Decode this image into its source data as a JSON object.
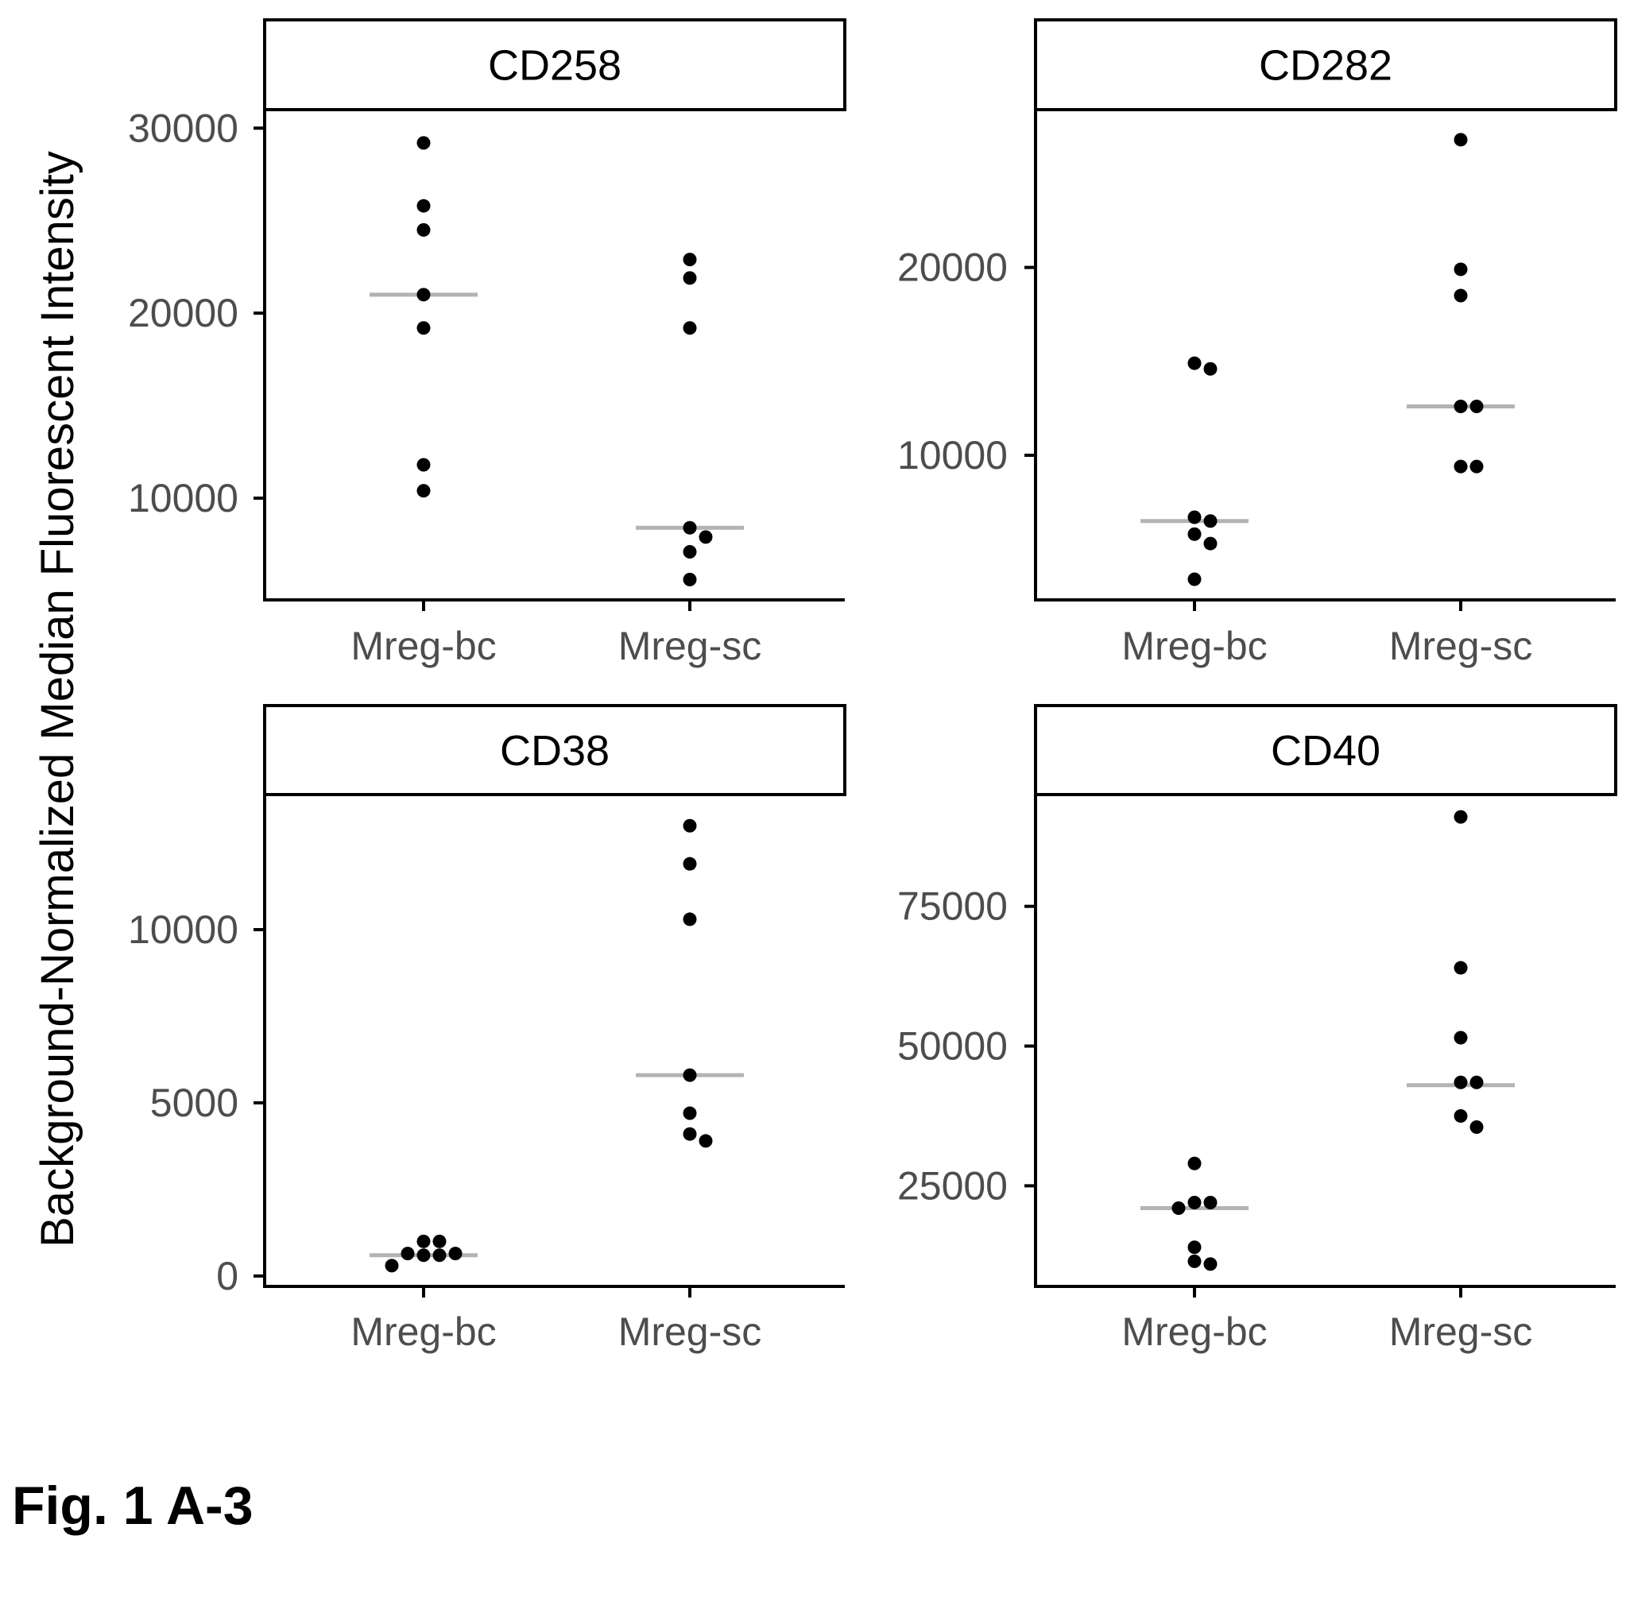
{
  "figure_label": "Fig. 1 A-3",
  "y_axis_label": "Background-Normalized Median Fluorescent Intensity",
  "colors": {
    "point": "#000000",
    "median": "#b3b3b3",
    "axis": "#000000",
    "tick_text": "#4d4d4d"
  },
  "chart_data": [
    {
      "type": "scatter",
      "title": "CD258",
      "categories": [
        "Mreg-bc",
        "Mreg-sc"
      ],
      "ylim": [
        4500,
        31000
      ],
      "yticks": [
        10000,
        20000,
        30000
      ],
      "ytick_labels": [
        "10000",
        "20000",
        "30000"
      ],
      "grid": false,
      "series": [
        {
          "category": "Mreg-bc",
          "values": [
            29200,
            25800,
            24500,
            21000,
            19200,
            11800,
            10400
          ],
          "median": 21000
        },
        {
          "category": "Mreg-sc",
          "values": [
            22900,
            21900,
            19200,
            8400,
            7900,
            7100,
            5600
          ],
          "median": 8400
        }
      ]
    },
    {
      "type": "scatter",
      "title": "CD282",
      "categories": [
        "Mreg-bc",
        "Mreg-sc"
      ],
      "ylim": [
        2300,
        28400
      ],
      "yticks": [
        10000,
        20000
      ],
      "ytick_labels": [
        "10000",
        "20000"
      ],
      "grid": false,
      "series": [
        {
          "category": "Mreg-bc",
          "values": [
            14900,
            14600,
            6700,
            6500,
            5800,
            5300,
            3400
          ],
          "median": 6500
        },
        {
          "category": "Mreg-sc",
          "values": [
            26800,
            19900,
            18500,
            12600,
            12600,
            9400,
            9400
          ],
          "median": 12600
        }
      ]
    },
    {
      "type": "scatter",
      "title": "CD38",
      "categories": [
        "Mreg-bc",
        "Mreg-sc"
      ],
      "ylim": [
        -300,
        13900
      ],
      "yticks": [
        0,
        5000,
        10000
      ],
      "ytick_labels": [
        "0",
        "5000",
        "10000"
      ],
      "grid": false,
      "series": [
        {
          "category": "Mreg-bc",
          "values": [
            1000,
            1000,
            650,
            650,
            600,
            600,
            300
          ],
          "median": 600
        },
        {
          "category": "Mreg-sc",
          "values": [
            13000,
            11900,
            10300,
            5800,
            4700,
            4100,
            3900
          ],
          "median": 5800
        }
      ]
    },
    {
      "type": "scatter",
      "title": "CD40",
      "categories": [
        "Mreg-bc",
        "Mreg-sc"
      ],
      "ylim": [
        7000,
        95000
      ],
      "yticks": [
        25000,
        50000,
        75000
      ],
      "ytick_labels": [
        "25000",
        "50000",
        "75000"
      ],
      "grid": false,
      "series": [
        {
          "category": "Mreg-bc",
          "values": [
            29000,
            22000,
            22000,
            21000,
            14000,
            11500,
            11000
          ],
          "median": 21000
        },
        {
          "category": "Mreg-sc",
          "values": [
            91000,
            64000,
            51500,
            43500,
            43500,
            37500,
            35500
          ],
          "median": 43000
        }
      ]
    }
  ]
}
